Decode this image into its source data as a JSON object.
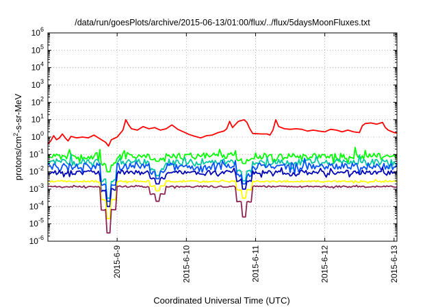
{
  "chart_data": {
    "type": "line",
    "title": "/data/run/goesPlots/archive/2015-06-13/01:00/flux/../flux/5daysMoonFluxes.txt",
    "xlabel": "Coordinated Universal Time (UTC)",
    "ylabel": {
      "pre": "protons/cm",
      "sup": "2",
      "post": "-s-sr-MeV"
    },
    "xlim": [
      "2015-06-08T00:00",
      "2015-06-13T01:00"
    ],
    "ylim": [
      1e-06,
      1000000.0
    ],
    "yscale": "log",
    "grid": true,
    "x_ticks": [
      {
        "date": "2015-06-09",
        "label": "2015-6-9"
      },
      {
        "date": "2015-06-10",
        "label": "2015-6-10"
      },
      {
        "date": "2015-06-11",
        "label": "2015-6-11"
      },
      {
        "date": "2015-06-12",
        "label": "2015-6-12"
      },
      {
        "date": "2015-06-13",
        "label": "2015-6-13"
      }
    ],
    "y_ticks": [
      {
        "value": 1e-06,
        "base": "10",
        "exp": "-6"
      },
      {
        "value": 1e-05,
        "base": "10",
        "exp": "-5"
      },
      {
        "value": 0.0001,
        "base": "10",
        "exp": "-4"
      },
      {
        "value": 0.001,
        "base": "10",
        "exp": "-3"
      },
      {
        "value": 0.01,
        "base": "10",
        "exp": "-2"
      },
      {
        "value": 0.1,
        "base": "10",
        "exp": "-1"
      },
      {
        "value": 1,
        "base": "10",
        "exp": "0"
      },
      {
        "value": 10,
        "base": "10",
        "exp": "1"
      },
      {
        "value": 100,
        "base": "10",
        "exp": "2"
      },
      {
        "value": 1000.0,
        "base": "10",
        "exp": "3"
      },
      {
        "value": 10000.0,
        "base": "10",
        "exp": "4"
      },
      {
        "value": 100000.0,
        "base": "10",
        "exp": "5"
      },
      {
        "value": 1000000.0,
        "base": "10",
        "exp": "6"
      }
    ],
    "series": [
      {
        "color": "#ff0000",
        "points": [
          [
            "2015-06-08T00:00",
            0.4
          ],
          [
            "2015-06-08T01:00",
            0.6
          ],
          [
            "2015-06-08T02:00",
            1.2
          ],
          [
            "2015-06-08T03:00",
            0.7
          ],
          [
            "2015-06-08T04:00",
            0.9
          ],
          [
            "2015-06-08T05:00",
            1.5
          ],
          [
            "2015-06-08T06:00",
            0.9
          ],
          [
            "2015-06-08T07:00",
            0.6
          ],
          [
            "2015-06-08T08:00",
            1.1
          ],
          [
            "2015-06-08T10:00",
            0.9
          ],
          [
            "2015-06-08T12:00",
            1.0
          ],
          [
            "2015-06-08T14:00",
            0.9
          ],
          [
            "2015-06-08T16:00",
            1.3
          ],
          [
            "2015-06-08T18:00",
            0.8
          ],
          [
            "2015-06-08T20:00",
            0.5
          ],
          [
            "2015-06-08T21:00",
            0.3
          ],
          [
            "2015-06-08T22:00",
            0.7
          ],
          [
            "2015-06-09T00:00",
            1.0
          ],
          [
            "2015-06-09T02:00",
            2.5
          ],
          [
            "2015-06-09T03:00",
            10
          ],
          [
            "2015-06-09T04:00",
            5
          ],
          [
            "2015-06-09T05:00",
            3
          ],
          [
            "2015-06-09T07:00",
            2.5
          ],
          [
            "2015-06-09T09:00",
            4
          ],
          [
            "2015-06-09T11:00",
            3
          ],
          [
            "2015-06-09T13:00",
            3.5
          ],
          [
            "2015-06-09T15:00",
            2.5
          ],
          [
            "2015-06-09T17:00",
            3
          ],
          [
            "2015-06-09T19:00",
            5
          ],
          [
            "2015-06-09T21:00",
            2.8
          ],
          [
            "2015-06-09T23:00",
            2
          ],
          [
            "2015-06-10T01:00",
            1.4
          ],
          [
            "2015-06-10T03:00",
            1.1
          ],
          [
            "2015-06-10T05:00",
            0.9
          ],
          [
            "2015-06-10T07:00",
            1.2
          ],
          [
            "2015-06-10T09:00",
            1.3
          ],
          [
            "2015-06-10T11:00",
            1.8
          ],
          [
            "2015-06-10T13:00",
            2.2
          ],
          [
            "2015-06-10T14:00",
            3
          ],
          [
            "2015-06-10T15:00",
            8
          ],
          [
            "2015-06-10T16:00",
            3.5
          ],
          [
            "2015-06-10T18:00",
            8
          ],
          [
            "2015-06-10T20:00",
            10
          ],
          [
            "2015-06-10T21:00",
            7
          ],
          [
            "2015-06-10T22:00",
            3
          ],
          [
            "2015-06-10T23:00",
            1.6
          ],
          [
            "2015-06-11T02:00",
            1.5
          ],
          [
            "2015-06-11T04:00",
            1.5
          ],
          [
            "2015-06-11T05:00",
            1.3
          ],
          [
            "2015-06-11T06:00",
            2.5
          ],
          [
            "2015-06-11T07:00",
            10
          ],
          [
            "2015-06-11T08:00",
            4
          ],
          [
            "2015-06-11T10:00",
            3
          ],
          [
            "2015-06-11T12:00",
            2.8
          ],
          [
            "2015-06-11T14:00",
            3
          ],
          [
            "2015-06-11T16:00",
            2.8
          ],
          [
            "2015-06-11T18:00",
            2.2
          ],
          [
            "2015-06-11T20:00",
            2.5
          ],
          [
            "2015-06-11T22:00",
            2.2
          ],
          [
            "2015-06-12T00:00",
            2
          ],
          [
            "2015-06-12T02:00",
            2.8
          ],
          [
            "2015-06-12T04:00",
            2.5
          ],
          [
            "2015-06-12T06:00",
            2
          ],
          [
            "2015-06-12T08:00",
            2.5
          ],
          [
            "2015-06-12T10:00",
            2
          ],
          [
            "2015-06-12T12:00",
            1.8
          ],
          [
            "2015-06-12T13:00",
            4.5
          ],
          [
            "2015-06-12T14:00",
            6
          ],
          [
            "2015-06-12T16:00",
            6.5
          ],
          [
            "2015-06-12T18:00",
            5.5
          ],
          [
            "2015-06-12T20:00",
            7
          ],
          [
            "2015-06-12T21:00",
            3.5
          ],
          [
            "2015-06-12T22:00",
            2.5
          ],
          [
            "2015-06-13T00:00",
            1.8
          ],
          [
            "2015-06-13T01:00",
            1.7
          ]
        ]
      },
      {
        "color": "#00ff00",
        "base": 0.08,
        "noise": 0.18,
        "spikes": 0.32,
        "dips": [
          [
            "2015-06-08T21:00",
            0.01
          ],
          [
            "2015-06-09T14:00",
            0.04
          ],
          [
            "2015-06-10T20:00",
            0.03
          ]
        ]
      },
      {
        "color": "#00c8a0",
        "base": 0.035,
        "noise": 0.18,
        "spikes": 0.3,
        "dips": [
          [
            "2015-06-08T21:00",
            0.0003
          ],
          [
            "2015-06-09T14:00",
            0.006
          ],
          [
            "2015-06-10T20:00",
            0.003
          ]
        ]
      },
      {
        "color": "#0050ff",
        "base": 0.02,
        "noise": 0.2,
        "spikes": 0.3,
        "dips": [
          [
            "2015-06-08T21:00",
            0.0002
          ],
          [
            "2015-06-09T14:00",
            0.004
          ],
          [
            "2015-06-10T20:00",
            0.002
          ]
        ]
      },
      {
        "color": "#0000b4",
        "base": 0.009,
        "noise": 0.12,
        "spikes": 0.18,
        "dips": [
          [
            "2015-06-08T21:00",
            0.0001
          ],
          [
            "2015-06-09T14:00",
            0.002
          ],
          [
            "2015-06-10T20:00",
            0.001
          ]
        ]
      },
      {
        "color": "#ffff00",
        "base": 0.0028,
        "noise": 0.05,
        "spikes": 0.06,
        "dips": [
          [
            "2015-06-08T21:00",
            2e-05
          ],
          [
            "2015-06-09T14:00",
            0.0008
          ],
          [
            "2015-06-10T20:00",
            0.0003
          ]
        ]
      },
      {
        "color": "#8b2252",
        "base": 0.0014,
        "noise": 0.05,
        "spikes": 0.05,
        "dips": [
          [
            "2015-06-08T21:00",
            3e-06
          ],
          [
            "2015-06-09T14:00",
            0.0002
          ],
          [
            "2015-06-10T20:00",
            2.5e-05
          ]
        ]
      }
    ]
  }
}
